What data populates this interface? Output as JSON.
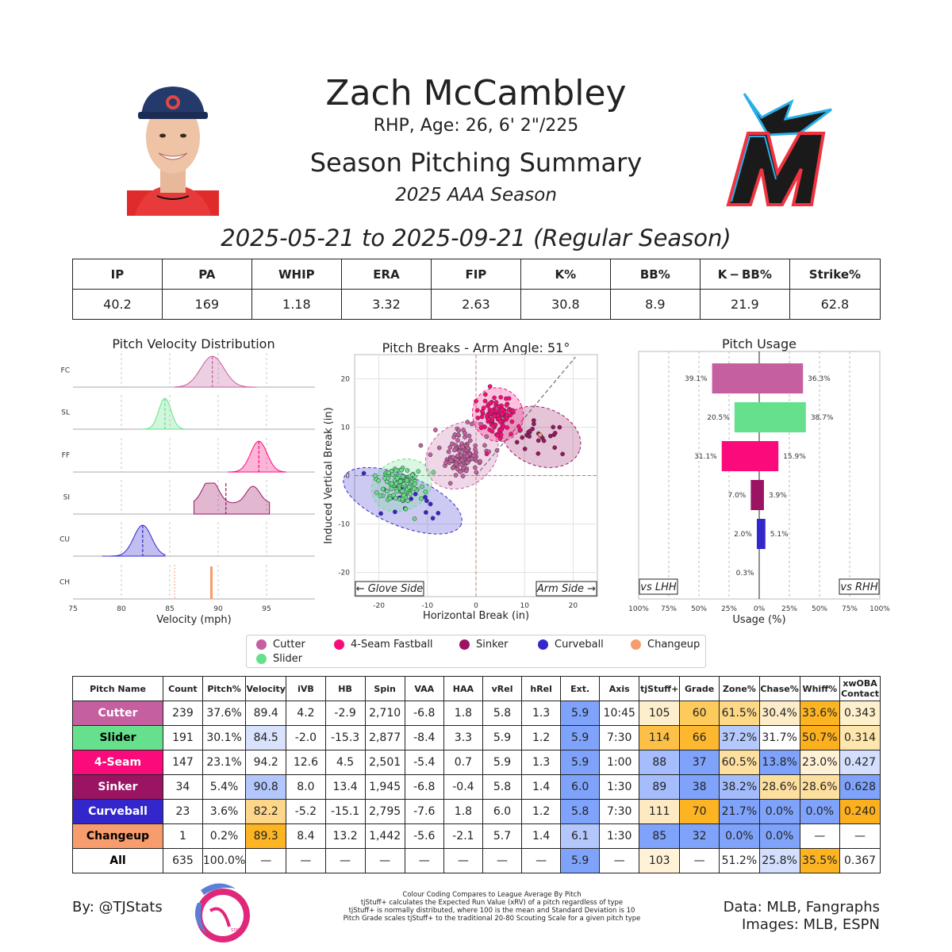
{
  "header": {
    "name": "Zach McCambley",
    "info": "RHP, Age: 26, 6' 2\"/225",
    "title": "Season Pitching Summary",
    "season": "2025 AAA Season",
    "date_range": "2025-05-21 to 2025-09-21 (Regular Season)"
  },
  "summary_stats": {
    "headers": [
      "IP",
      "PA",
      "WHIP",
      "ERA",
      "FIP",
      "K%",
      "BB%",
      "K − BB%",
      "Strike%"
    ],
    "values": [
      "40.2",
      "169",
      "1.18",
      "3.32",
      "2.63",
      "30.8",
      "8.9",
      "21.9",
      "62.8"
    ]
  },
  "colors": {
    "Cutter": "#c55fa0",
    "Slider": "#66e08c",
    "4-Seam Fastball": "#fa0a7a",
    "Sinker": "#9a1463",
    "Curveball": "#3327cc",
    "Changeup": "#f79c6c"
  },
  "velocity_plot": {
    "title": "Pitch Velocity Distribution",
    "xlabel": "Velocity (mph)",
    "xticks": [
      "75",
      "80",
      "85",
      "90",
      "95"
    ],
    "rows": [
      "FC",
      "SL",
      "FF",
      "SI",
      "CU",
      "CH"
    ]
  },
  "break_plot": {
    "title": "Pitch Breaks - Arm Angle: 51°",
    "xlabel": "Horizontal Break (in)",
    "ylabel": "Induced Vertical Break (in)",
    "xticks": [
      "-20",
      "-10",
      "0",
      "10",
      "20"
    ],
    "yticks": [
      "20",
      "10",
      "0",
      "-10",
      "-20"
    ],
    "glove_label": "← Glove Side",
    "arm_label": "Arm Side →"
  },
  "usage_plot": {
    "title": "Pitch Usage",
    "xlabel": "Usage (%)",
    "xticks": [
      "100%",
      "75%",
      "50%",
      "25%",
      "0%",
      "25%",
      "50%",
      "75%",
      "100%"
    ],
    "lhh_label": "vs LHH",
    "rhh_label": "vs RHH"
  },
  "legend": [
    "Cutter",
    "4-Seam Fastball",
    "Sinker",
    "Curveball",
    "Changeup",
    "Slider"
  ],
  "chart_data": [
    {
      "type": "area",
      "title": "Pitch Velocity Distribution",
      "xlabel": "Velocity (mph)",
      "xlim": [
        75,
        100
      ],
      "series": [
        {
          "name": "FC",
          "mean": 89.4,
          "range": [
            85.5,
            94
          ]
        },
        {
          "name": "SL",
          "mean": 84.5,
          "range": [
            82,
            86.5
          ]
        },
        {
          "name": "FF",
          "mean": 94.2,
          "range": [
            91,
            97
          ]
        },
        {
          "name": "SI",
          "mean": 90.8,
          "range": [
            87.5,
            95.3
          ]
        },
        {
          "name": "CU",
          "mean": 82.2,
          "range": [
            78,
            84.5
          ]
        },
        {
          "name": "CH",
          "mean": 89.3,
          "range": [
            89.3,
            89.3
          ]
        }
      ]
    },
    {
      "type": "scatter",
      "title": "Pitch Breaks - Arm Angle: 51°",
      "xlabel": "Horizontal Break (in)",
      "ylabel": "Induced Vertical Break (in)",
      "xlim": [
        -25,
        25
      ],
      "ylim": [
        -25,
        25
      ],
      "series": [
        {
          "name": "Cutter",
          "center": [
            -2.9,
            4.2
          ]
        },
        {
          "name": "Slider",
          "center": [
            -15.3,
            -2.0
          ]
        },
        {
          "name": "4-Seam Fastball",
          "center": [
            4.5,
            12.6
          ]
        },
        {
          "name": "Sinker",
          "center": [
            13.4,
            8.0
          ]
        },
        {
          "name": "Curveball",
          "center": [
            -15.1,
            -5.2
          ]
        },
        {
          "name": "Changeup",
          "center": [
            13.2,
            8.4
          ]
        }
      ]
    },
    {
      "type": "bar",
      "title": "Pitch Usage",
      "xlabel": "Usage (%)",
      "categories": [
        "Cutter",
        "Slider",
        "4-Seam Fastball",
        "Sinker",
        "Curveball",
        "Changeup"
      ],
      "series": [
        {
          "name": "vs LHH",
          "values": [
            39.1,
            20.5,
            31.1,
            7.0,
            2.0,
            0.3
          ]
        },
        {
          "name": "vs RHH",
          "values": [
            36.3,
            38.7,
            15.9,
            3.9,
            5.1,
            0.0
          ]
        }
      ],
      "labels_lhh": [
        "39.1%",
        "20.5%",
        "31.1%",
        "7.0%",
        "2.0%",
        "0.3%"
      ],
      "labels_rhh": [
        "36.3%",
        "38.7%",
        "15.9%",
        "3.9%",
        "5.1%",
        ""
      ]
    }
  ],
  "pitch_table": {
    "headers": [
      "Pitch Name",
      "Count",
      "Pitch%",
      "Velocity",
      "iVB",
      "HB",
      "Spin",
      "VAA",
      "HAA",
      "vRel",
      "hRel",
      "Ext.",
      "Axis",
      "tjStuff+",
      "Grade",
      "Zone%",
      "Chase%",
      "Whiff%",
      "xwOBA Contact"
    ],
    "rows": [
      {
        "name": "Cutter",
        "cells": [
          "239",
          "37.6%",
          "89.4",
          "4.2",
          "-2.9",
          "2,710",
          "-6.8",
          "1.8",
          "5.8",
          "1.3",
          "5.9",
          "10:45",
          "105",
          "60",
          "61.5%",
          "30.4%",
          "33.6%",
          "0.343"
        ]
      },
      {
        "name": "Slider",
        "cells": [
          "191",
          "30.1%",
          "84.5",
          "-2.0",
          "-15.3",
          "2,877",
          "-8.4",
          "3.3",
          "5.9",
          "1.2",
          "5.9",
          "7:30",
          "114",
          "66",
          "37.2%",
          "31.7%",
          "50.7%",
          "0.314"
        ]
      },
      {
        "name": "4-Seam",
        "cells": [
          "147",
          "23.1%",
          "94.2",
          "12.6",
          "4.5",
          "2,501",
          "-5.4",
          "0.7",
          "5.9",
          "1.3",
          "5.9",
          "1:00",
          "88",
          "37",
          "60.5%",
          "13.8%",
          "23.0%",
          "0.427"
        ]
      },
      {
        "name": "Sinker",
        "cells": [
          "34",
          "5.4%",
          "90.8",
          "8.0",
          "13.4",
          "1,945",
          "-6.8",
          "-0.4",
          "5.8",
          "1.4",
          "6.0",
          "1:30",
          "89",
          "38",
          "38.2%",
          "28.6%",
          "28.6%",
          "0.628"
        ]
      },
      {
        "name": "Curveball",
        "cells": [
          "23",
          "3.6%",
          "82.2",
          "-5.2",
          "-15.1",
          "2,795",
          "-7.6",
          "1.8",
          "6.0",
          "1.2",
          "5.8",
          "7:30",
          "111",
          "70",
          "21.7%",
          "0.0%",
          "0.0%",
          "0.240"
        ]
      },
      {
        "name": "Changeup",
        "cells": [
          "1",
          "0.2%",
          "89.3",
          "8.4",
          "13.2",
          "1,442",
          "-5.6",
          "-2.1",
          "5.7",
          "1.4",
          "6.1",
          "1:30",
          "85",
          "32",
          "0.0%",
          "0.0%",
          "—",
          "—"
        ]
      },
      {
        "name": "All",
        "cells": [
          "635",
          "100.0%",
          "—",
          "—",
          "—",
          "—",
          "—",
          "—",
          "—",
          "—",
          "5.9",
          "—",
          "103",
          "—",
          "51.2%",
          "25.8%",
          "35.5%",
          "0.367"
        ]
      }
    ],
    "cell_colors": [
      [
        "",
        "",
        "",
        "",
        "",
        "",
        "",
        "",
        "",
        "",
        "#7fa3fb",
        "",
        "#fdefcb",
        "#fdca5c",
        "#fdd986",
        "#fdecc8",
        "#fcb423",
        "#fff0cc"
      ],
      [
        "",
        "",
        "#d8e2fd",
        "",
        "",
        "",
        "",
        "",
        "",
        "",
        "#7fa3fb",
        "",
        "#fdc046",
        "#fdb830",
        "#b5c9fc",
        "",
        "#fcb01e",
        "#fee6ac"
      ],
      [
        "",
        "",
        "",
        "",
        "",
        "",
        "",
        "",
        "",
        "",
        "#7fa3fb",
        "",
        "#a5bdfc",
        "#7fa3fb",
        "#fde0a0",
        "#7fa3fb",
        "#fff1d4",
        "#d4defd"
      ],
      [
        "",
        "",
        "#b3c7fc",
        "",
        "",
        "",
        "",
        "",
        "",
        "",
        "#7fa3fb",
        "",
        "#a5bdfc",
        "#7fa3fb",
        "#a4bcfc",
        "#fde0a0",
        "#fde0a0",
        "#7fa3fb"
      ],
      [
        "",
        "",
        "#fdd68a",
        "",
        "",
        "",
        "",
        "",
        "",
        "",
        "#7fa3fb",
        "",
        "#fdeac2",
        "#fcb423",
        "#7fa3fb",
        "#7fa3fb",
        "#7fa3fb",
        "#fcb01e"
      ],
      [
        "",
        "",
        "#fcb423",
        "",
        "",
        "",
        "",
        "",
        "",
        "",
        "#b3c7fc",
        "",
        "#7fa3fb",
        "#7fa3fb",
        "#7fa3fb",
        "#7fa3fb",
        "",
        ""
      ],
      [
        "",
        "",
        "",
        "",
        "",
        "",
        "",
        "",
        "",
        "",
        "#7fa3fb",
        "",
        "#fff2d6",
        "",
        "",
        "#d4defd",
        "#fcb423",
        ""
      ]
    ],
    "name_colors": [
      "#c55fa0",
      "#66e08c",
      "#fa0a7a",
      "#9a1463",
      "#3327cc",
      "#f79c6c",
      "#ffffff"
    ],
    "name_text_colors": [
      "#ffffff",
      "#000000",
      "#ffffff",
      "#ffffff",
      "#ffffff",
      "#000000",
      "#000000"
    ]
  },
  "footer": {
    "author": "By: @TJStats",
    "notes": [
      "Colour Coding Compares to League Average By Pitch",
      "tjStuff+ calculates the Expected Run Value (xRV) of a pitch regardless of type",
      "tjStuff+ is normally distributed, where 100 is the mean and Standard Deviation is 10",
      "Pitch Grade scales tjStuff+ to the traditional 20-80 Scouting Scale for a given pitch type"
    ],
    "data_source": "Data: MLB, Fangraphs",
    "image_source": "Images: MLB, ESPN",
    "brand_mark": "STATS"
  }
}
